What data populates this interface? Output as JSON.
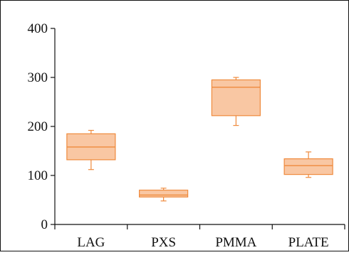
{
  "chart_data": {
    "type": "box",
    "title": "",
    "xlabel": "",
    "ylabel": "",
    "ylim": [
      0,
      400
    ],
    "yticks": [
      "0",
      "100",
      "200",
      "300",
      "400"
    ],
    "categories": [
      "LAG",
      "PXS",
      "PMMA",
      "PLATE"
    ],
    "boxes": [
      {
        "category": "LAG",
        "min": 112,
        "q1": 132,
        "median": 158,
        "q3": 185,
        "max": 192
      },
      {
        "category": "PXS",
        "min": 48,
        "q1": 56,
        "median": 60,
        "q3": 70,
        "max": 74
      },
      {
        "category": "PMMA",
        "min": 202,
        "q1": 222,
        "median": 280,
        "q3": 295,
        "max": 300
      },
      {
        "category": "PLATE",
        "min": 96,
        "q1": 102,
        "median": 120,
        "q3": 134,
        "max": 148
      }
    ],
    "grid": false,
    "legend": "none",
    "colors": {
      "box_fill": "#f9c7a3",
      "box_stroke": "#ef8a3c",
      "axis": "#111111"
    }
  }
}
